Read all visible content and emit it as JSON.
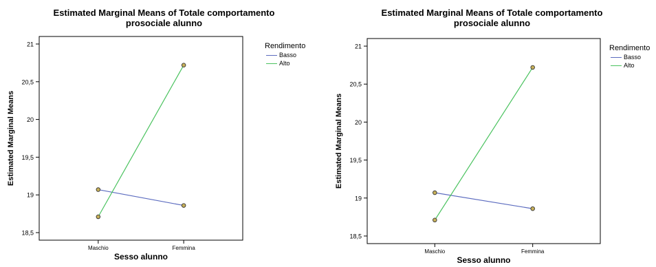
{
  "chart_data": [
    {
      "type": "line",
      "title": "Estimated Marginal Means of Totale comportamento",
      "subtitle": "prosociale alunno",
      "xlabel": "Sesso alunno",
      "ylabel": "Estimated Marginal Means",
      "categories": [
        "Maschio",
        "Femmina"
      ],
      "ylim": [
        18.4,
        21.1
      ],
      "yticks": [
        "18,5",
        "19",
        "19,5",
        "20",
        "20,5",
        "21"
      ],
      "ytick_values": [
        18.5,
        19,
        19.5,
        20,
        20.5,
        21
      ],
      "legend_title": "Rendimento",
      "legend_position": "top-right-outside",
      "grid": false,
      "series": [
        {
          "name": "Basso",
          "color": "#5b6bbf",
          "values": [
            19.07,
            18.86
          ]
        },
        {
          "name": "Alto",
          "color": "#49c25e",
          "values": [
            18.71,
            20.72
          ]
        }
      ]
    },
    {
      "type": "line",
      "title": "Estimated Marginal Means of Totale comportamento",
      "subtitle": "prosociale alunno",
      "xlabel": "Sesso alunno",
      "ylabel": "Estimated Marginal Means",
      "categories": [
        "Maschio",
        "Femmina"
      ],
      "ylim": [
        18.4,
        21.1
      ],
      "yticks": [
        "18,5",
        "19",
        "19,5",
        "20",
        "20,5",
        "21"
      ],
      "ytick_values": [
        18.5,
        19,
        19.5,
        20,
        20.5,
        21
      ],
      "legend_title": "Rendimento",
      "legend_position": "top-right-outside",
      "grid": false,
      "series": [
        {
          "name": "Basso",
          "color": "#5b6bbf",
          "values": [
            19.07,
            18.86
          ]
        },
        {
          "name": "Alto",
          "color": "#49c25e",
          "values": [
            18.71,
            20.72
          ]
        }
      ]
    }
  ],
  "marker_fill": "#c8b15a"
}
